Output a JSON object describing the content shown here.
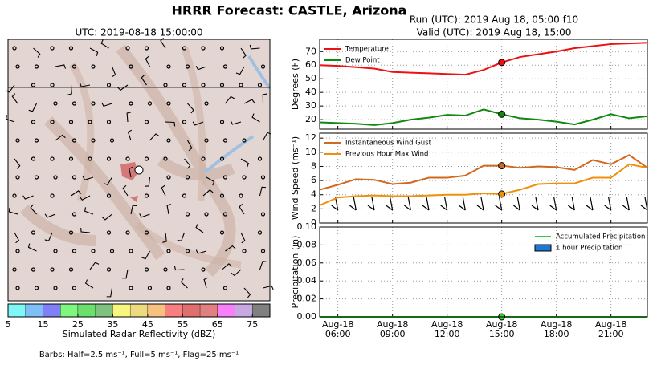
{
  "title": "HRRR Forecast: CASTLE, Arizona",
  "chart_data": [
    {
      "type": "map",
      "title": "UTC: 2019-08-18 15:00:00",
      "note": "Barbs: Half=2.5 ms⁻¹, Full=5 ms⁻¹, Flag=25 ms⁻¹"
    },
    {
      "type": "colorbar",
      "xlabel": "Simulated Radar Reflectivity (dBZ)",
      "bins": [
        5,
        10,
        15,
        20,
        25,
        30,
        35,
        40,
        45,
        50,
        55,
        60,
        65,
        70,
        75,
        80
      ],
      "colors": [
        "#7ff7f7",
        "#7fbff7",
        "#7f7ff7",
        "#7ff77f",
        "#6ce06c",
        "#7fc27f",
        "#f7f77f",
        "#ecdc7f",
        "#f7c27f",
        "#f77f7f",
        "#e07070",
        "#e08080",
        "#f77ff7",
        "#c8a8e0",
        "#808080"
      ],
      "xlim": [
        5,
        80
      ],
      "xticks": [
        5,
        15,
        25,
        35,
        45,
        55,
        65,
        75
      ]
    },
    {
      "type": "line",
      "title": "Run (UTC): 2019 Aug 18, 05:00 f10",
      "subtitle": "Valid (UTC): 2019 Aug 18, 15:00",
      "ylabel": "Degrees (F)",
      "highlight": 15,
      "legend": "upper left",
      "grid": true,
      "x": [
        5,
        6,
        7,
        8,
        9,
        10,
        11,
        12,
        13,
        14,
        15,
        16,
        17,
        18,
        19,
        20,
        21,
        22,
        23
      ],
      "xlim": [
        5,
        23
      ],
      "ylim": [
        13,
        79
      ],
      "yticks": [
        20,
        30,
        40,
        50,
        60,
        70
      ],
      "series": [
        {
          "name": "Temperature",
          "color": "#ee1111",
          "values": [
            60,
            59.5,
            58.5,
            57.5,
            55,
            54.5,
            54,
            53.5,
            53,
            56.5,
            62,
            66,
            68,
            70,
            72.5,
            74,
            75.5,
            76,
            76.5
          ]
        },
        {
          "name": "Dew Point",
          "color": "#118811",
          "values": [
            18,
            17.5,
            17,
            16,
            17.5,
            20,
            21.5,
            23.5,
            23,
            27.5,
            24,
            21,
            20,
            18.5,
            16.5,
            20,
            24,
            21,
            22.5
          ]
        }
      ]
    },
    {
      "type": "line",
      "ylabel": "Wind Speed (ms⁻¹)",
      "highlight": 15,
      "legend": "upper left",
      "grid": true,
      "x": [
        5,
        6,
        7,
        8,
        9,
        10,
        11,
        12,
        13,
        14,
        15,
        16,
        17,
        18,
        19,
        20,
        21,
        22,
        23
      ],
      "xlim": [
        5,
        23
      ],
      "ylim": [
        0,
        12.7
      ],
      "yticks": [
        0,
        2,
        4,
        6,
        8,
        10,
        12
      ],
      "series": [
        {
          "name": "Instantaneous Wind Gust",
          "color": "#d2691e",
          "values": [
            4.7,
            5.4,
            6.2,
            6.1,
            5.5,
            5.7,
            6.4,
            6.4,
            6.7,
            8.1,
            8.1,
            7.8,
            8.0,
            7.9,
            7.5,
            8.9,
            8.3,
            9.6,
            7.8
          ]
        },
        {
          "name": "Previous Hour Max Wind",
          "color": "#f0900a",
          "values": [
            2.5,
            3.6,
            3.8,
            3.9,
            3.8,
            3.8,
            3.9,
            4.0,
            4.0,
            4.2,
            4.1,
            4.7,
            5.5,
            5.6,
            5.6,
            6.4,
            6.4,
            8.3,
            7.8
          ]
        }
      ]
    },
    {
      "type": "line",
      "ylabel": "Precipitation (in)",
      "highlight": 15,
      "legend": "upper right",
      "grid": true,
      "x": [
        5,
        6,
        7,
        8,
        9,
        10,
        11,
        12,
        13,
        14,
        15,
        16,
        17,
        18,
        19,
        20,
        21,
        22,
        23
      ],
      "xlim": [
        5,
        23
      ],
      "ylim": [
        0,
        0.1
      ],
      "yticks": [
        {
          "value": 0,
          "label": "0.00"
        },
        {
          "value": 0.02,
          "label": "0.02"
        },
        {
          "value": 0.04,
          "label": "0.04"
        },
        {
          "value": 0.06,
          "label": "0.06"
        },
        {
          "value": 0.08,
          "label": "0.08"
        },
        {
          "value": 0.1,
          "label": "0.10"
        }
      ],
      "xticks": [
        {
          "value": 6,
          "label": [
            "Aug-18",
            "06:00"
          ]
        },
        {
          "value": 9,
          "label": [
            "Aug-18",
            "09:00"
          ]
        },
        {
          "value": 12,
          "label": [
            "Aug-18",
            "12:00"
          ]
        },
        {
          "value": 15,
          "label": [
            "Aug-18",
            "15:00"
          ]
        },
        {
          "value": 18,
          "label": [
            "Aug-18",
            "18:00"
          ]
        },
        {
          "value": 21,
          "label": [
            "Aug-18",
            "21:00"
          ]
        }
      ],
      "series": [
        {
          "name": "Accumulated Precipitation",
          "color": "#33cc33",
          "values": [
            0,
            0,
            0,
            0,
            0,
            0,
            0,
            0,
            0,
            0,
            0,
            0,
            0,
            0,
            0,
            0,
            0,
            0,
            0
          ]
        },
        {
          "name": "1 hour Precipitation",
          "type": "bar",
          "color": "#1f77d4",
          "values": [
            0,
            0,
            0,
            0,
            0,
            0,
            0,
            0,
            0,
            0,
            0,
            0,
            0,
            0,
            0,
            0,
            0,
            0,
            0
          ]
        }
      ]
    }
  ]
}
